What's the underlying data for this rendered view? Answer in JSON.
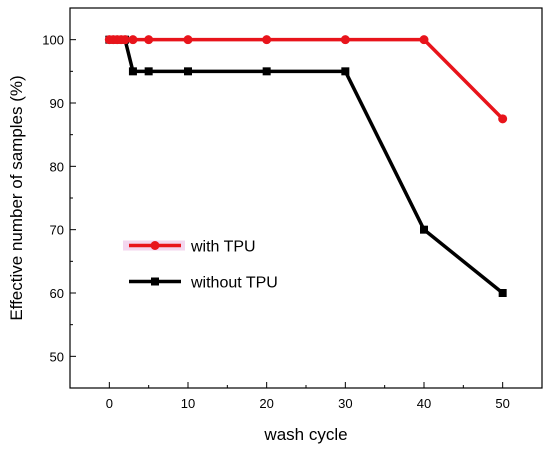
{
  "chart_data": {
    "type": "line",
    "title": "",
    "xlabel": "wash cycle",
    "ylabel": "Effective number of samples (%)",
    "xlim": [
      -5,
      55
    ],
    "ylim": [
      45,
      105
    ],
    "xticks": [
      0,
      10,
      20,
      30,
      40,
      50
    ],
    "yticks": [
      50,
      60,
      70,
      80,
      90,
      100
    ],
    "grid": false,
    "legend_position": "center-left",
    "series": [
      {
        "name": "with TPU",
        "color": "#e8141b",
        "marker": "circle",
        "x": [
          0,
          0.5,
          1,
          1.5,
          2,
          3,
          5,
          10,
          20,
          30,
          40,
          50
        ],
        "y": [
          100,
          100,
          100,
          100,
          100,
          100,
          100,
          100,
          100,
          100,
          100,
          87.5
        ]
      },
      {
        "name": "without TPU",
        "color": "#000000",
        "marker": "square",
        "x": [
          0,
          0.5,
          1,
          1.5,
          2,
          3,
          5,
          10,
          20,
          30,
          40,
          50
        ],
        "y": [
          100,
          100,
          100,
          100,
          100,
          95,
          95,
          95,
          95,
          95,
          70,
          60
        ]
      }
    ]
  }
}
